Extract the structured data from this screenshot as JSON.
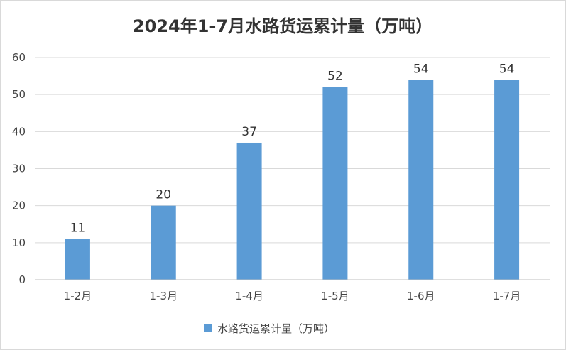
{
  "chart_data": {
    "type": "bar",
    "title": "2024年1-7月水路货运累计量（万吨）",
    "categories": [
      "1-2月",
      "1-3月",
      "1-4月",
      "1-5月",
      "1-6月",
      "1-7月"
    ],
    "series": [
      {
        "name": "水路货运累计量（万吨）",
        "values": [
          11,
          20,
          37,
          52,
          54,
          54
        ],
        "color": "#5b9bd5"
      }
    ],
    "xlabel": "",
    "ylabel": "",
    "ylim": [
      0,
      60
    ],
    "yticks": [
      0,
      10,
      20,
      30,
      40,
      50,
      60
    ],
    "grid": true,
    "legend": "bottom",
    "data_labels": true
  }
}
